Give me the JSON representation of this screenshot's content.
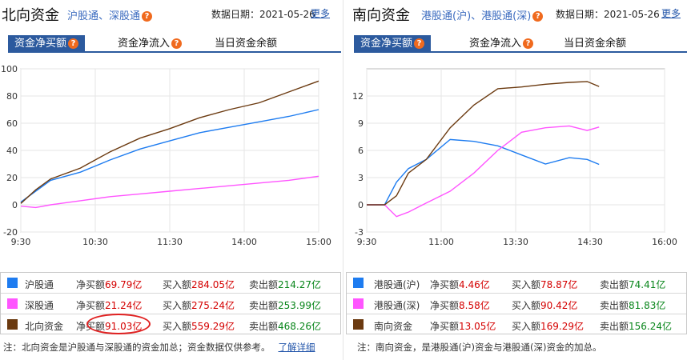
{
  "left": {
    "title": "北向资金",
    "subtitle": "沪股通、深股通",
    "date_label": "数据日期：2021-05-26",
    "more": "更多",
    "tabs": [
      "资金净买额",
      "资金净流入",
      "当日资金余额"
    ],
    "legend": [
      {
        "name": "沪股通",
        "net_label": "净买额",
        "net": "69.79亿",
        "buy_label": "买入额",
        "buy": "284.05亿",
        "sell_label": "卖出额",
        "sell": "214.27亿",
        "color": "#1e7cf0"
      },
      {
        "name": "深股通",
        "net_label": "净买额",
        "net": "21.24亿",
        "buy_label": "买入额",
        "buy": "275.24亿",
        "sell_label": "卖出额",
        "sell": "253.99亿",
        "color": "#ff55ff"
      },
      {
        "name": "北向资金",
        "net_label": "净买额",
        "net": "91.03亿",
        "buy_label": "买入额",
        "buy": "559.29亿",
        "sell_label": "卖出额",
        "sell": "468.26亿",
        "color": "#6b3a10"
      }
    ],
    "note": "注：北向资金是沪股通与深股通的资金加总；资金数据仅供参考。",
    "note_link": "了解详细"
  },
  "right": {
    "title": "南向资金",
    "subtitle": "港股通(沪)、港股通(深)",
    "date_label": "数据日期：2021-05-26",
    "more": "更多",
    "tabs": [
      "资金净买额",
      "资金净流入",
      "当日资金余额"
    ],
    "legend": [
      {
        "name": "港股通(沪)",
        "net_label": "净买额",
        "net": "4.46亿",
        "buy_label": "买入额",
        "buy": "78.87亿",
        "sell_label": "卖出额",
        "sell": "74.41亿",
        "color": "#1e7cf0"
      },
      {
        "name": "港股通(深)",
        "net_label": "净买额",
        "net": "8.58亿",
        "buy_label": "买入额",
        "buy": "90.42亿",
        "sell_label": "卖出额",
        "sell": "81.83亿",
        "color": "#ff55ff"
      },
      {
        "name": "南向资金",
        "net_label": "净买额",
        "net": "13.05亿",
        "buy_label": "买入额",
        "buy": "169.29亿",
        "sell_label": "卖出额",
        "sell": "156.24亿",
        "color": "#6b3a10"
      }
    ],
    "note": "注：南向资金，是港股通(沪)资金与港股通(深)资金的加总。"
  },
  "chart_data": [
    {
      "type": "line",
      "title": "",
      "x_ticks": [
        "9:30",
        "10:30",
        "11:30",
        "14:00",
        "15:00"
      ],
      "x": [
        0,
        0.05,
        0.1,
        0.2,
        0.3,
        0.4,
        0.5,
        0.6,
        0.7,
        0.8,
        0.9,
        1.0
      ],
      "ylim": [
        -20,
        100
      ],
      "y_ticks": [
        -20,
        0,
        20,
        40,
        60,
        80,
        100
      ],
      "grid": true,
      "series": [
        {
          "name": "沪股通",
          "color": "#1e7cf0",
          "values": [
            2,
            10,
            18,
            24,
            33,
            41,
            47,
            53,
            57,
            61,
            65,
            70
          ]
        },
        {
          "name": "深股通",
          "color": "#ff55ff",
          "values": [
            -1,
            -2,
            0,
            3,
            6,
            8,
            10,
            12,
            14,
            16,
            18,
            21
          ]
        },
        {
          "name": "北向资金",
          "color": "#6b3a10",
          "values": [
            1,
            11,
            19,
            27,
            39,
            49,
            56,
            64,
            70,
            75,
            83,
            91
          ]
        }
      ]
    },
    {
      "type": "line",
      "title": "",
      "x_ticks": [
        "9:30",
        "11:00",
        "13:30",
        "14:30",
        "16:00"
      ],
      "x": [
        0,
        0.06,
        0.1,
        0.14,
        0.2,
        0.28,
        0.36,
        0.44,
        0.52,
        0.6,
        0.68,
        0.74,
        0.78
      ],
      "ylim": [
        -3,
        15
      ],
      "y_ticks": [
        -3,
        0,
        3,
        6,
        9,
        12
      ],
      "grid": true,
      "series": [
        {
          "name": "港股通(沪)",
          "color": "#1e7cf0",
          "values": [
            0,
            0,
            2.5,
            4,
            5,
            7.2,
            7,
            6.5,
            5.5,
            4.5,
            5.2,
            5,
            4.46
          ]
        },
        {
          "name": "港股通(深)",
          "color": "#ff55ff",
          "values": [
            0,
            0,
            -1.3,
            -0.8,
            0.2,
            1.5,
            3.5,
            6,
            8,
            8.5,
            8.7,
            8.2,
            8.58
          ]
        },
        {
          "name": "南向资金",
          "color": "#6b3a10",
          "values": [
            0,
            0,
            1,
            3.5,
            5,
            8.5,
            11,
            12.8,
            13,
            13.3,
            13.5,
            13.6,
            13.05
          ]
        }
      ]
    }
  ]
}
